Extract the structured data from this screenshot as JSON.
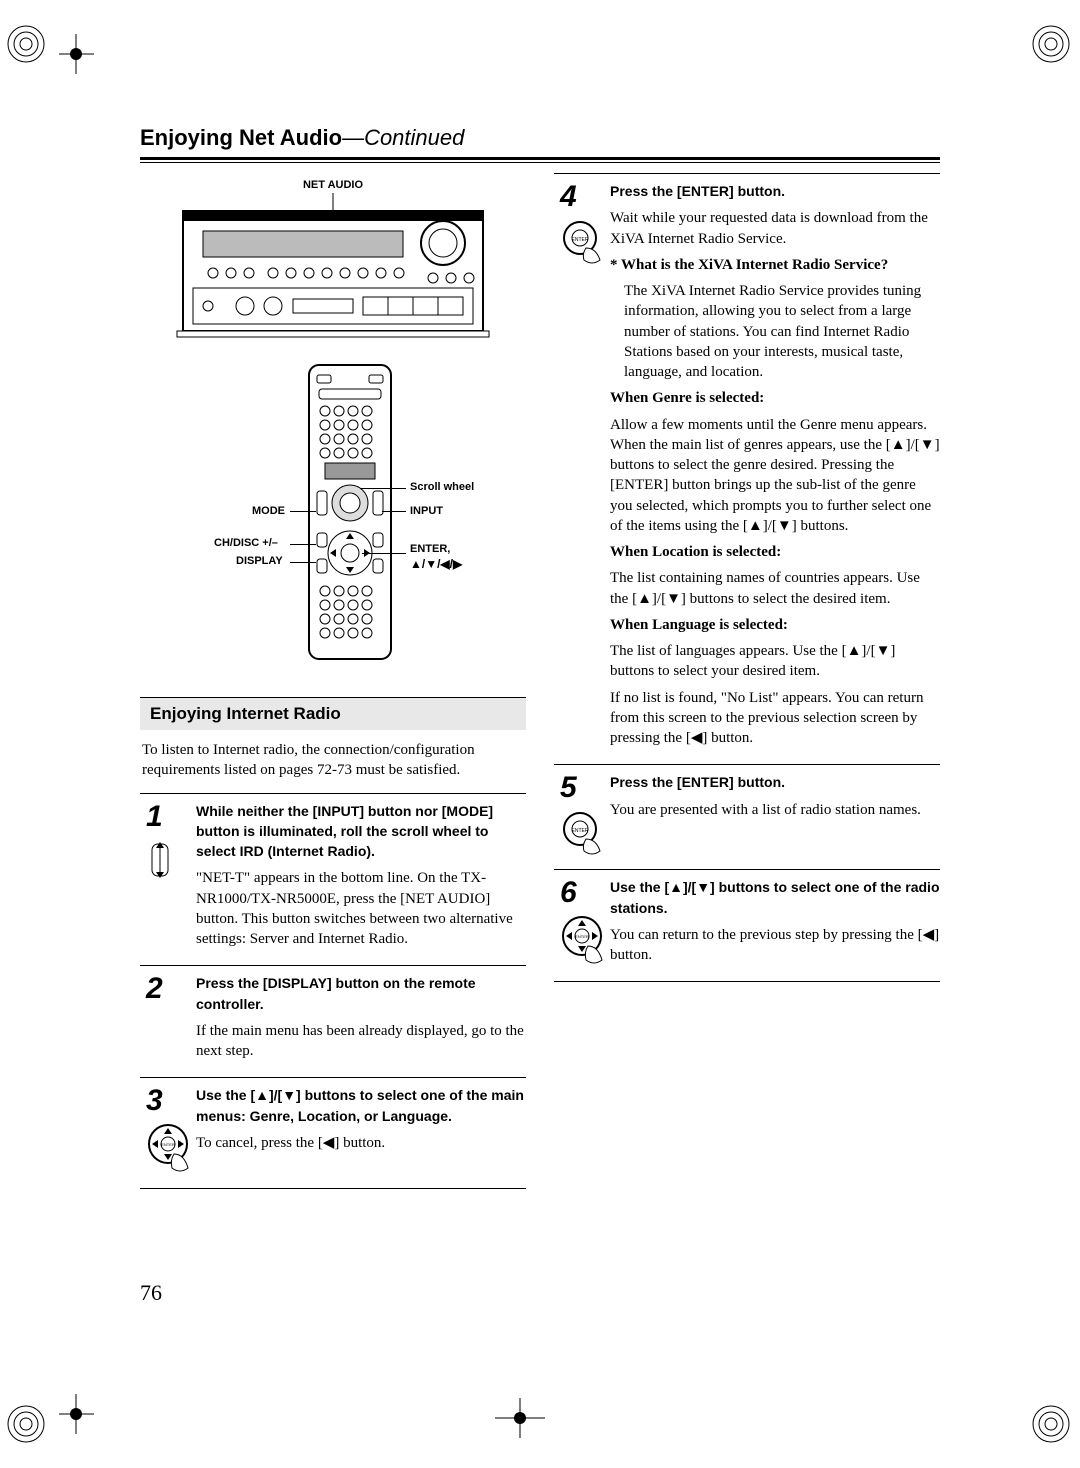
{
  "page_number": "76",
  "title_bold": "Enjoying Net Audio",
  "title_sep": "—",
  "title_italic": "Continued",
  "receiver_label": "NET AUDIO",
  "remote_labels": {
    "scroll_wheel": "Scroll wheel",
    "input": "INPUT",
    "mode": "MODE",
    "ch_disc": "CH/DISC +/–",
    "display": "DISPLAY",
    "enter": "ENTER,",
    "arrows": "▲/▼/◀/▶"
  },
  "section_heading": "Enjoying Internet Radio",
  "intro": "To listen to Internet radio, the connection/configuration requirements listed on pages 72-73 must be satisfied.",
  "steps_left": [
    {
      "num": "1",
      "icon": "scroll",
      "lead": "While neither the [INPUT] button nor [MODE] button is illuminated, roll the scroll wheel to select IRD (Internet Radio).",
      "body": "\"NET-T\" appears in the bottom line. On the TX-NR1000/TX-NR5000E, press the [NET AUDIO] button. This button switches between two alternative settings: Server and Internet Radio."
    },
    {
      "num": "2",
      "icon": "",
      "lead": "Press the [DISPLAY] button on the remote controller.",
      "body": "If the main menu has been already displayed, go to the next step."
    },
    {
      "num": "3",
      "icon": "navpad",
      "lead": "Use the [▲]/[▼] buttons to select one of the main menus: Genre, Location, or Language.",
      "body": "To cancel, press the [◀] button."
    }
  ],
  "steps_right": [
    {
      "num": "4",
      "icon": "enter",
      "lead": "Press the [ENTER] button.",
      "paras": [
        {
          "text": "Wait while your requested data is download from the XiVA Internet Radio Service."
        },
        {
          "bold": "* What is the XiVA Internet Radio Service?",
          "indent_bold_line2": "   "
        },
        {
          "text": "The XiVA Internet Radio Service provides tuning information, allowing you to select from a large number of stations. You can find Internet Radio Stations based on your interests, musical taste, language, and location.",
          "indent": true
        },
        {
          "bold": "When Genre is selected:"
        },
        {
          "text": "Allow a few moments until the Genre menu appears. When the main list of genres appears, use the [▲]/[▼] buttons to select the genre desired. Pressing the [ENTER] button brings up the sub-list of the genre you selected, which prompts you to further select one of the items using the [▲]/[▼] buttons."
        },
        {
          "bold": "When Location is selected:"
        },
        {
          "text": "The list containing names of countries appears. Use the [▲]/[▼] buttons to select the desired item."
        },
        {
          "bold": "When Language is selected:"
        },
        {
          "text": "The list of languages appears. Use the [▲]/[▼] buttons to select your desired item."
        },
        {
          "text": "If no list is found, \"No List\" appears. You can return from this screen to the previous selection screen by pressing the [◀] button."
        }
      ]
    },
    {
      "num": "5",
      "icon": "enter",
      "lead": "Press the [ENTER] button.",
      "paras": [
        {
          "text": "You are presented with a list of radio station names."
        }
      ]
    },
    {
      "num": "6",
      "icon": "navpad",
      "lead": "Use the [▲]/[▼] buttons to select one of the radio stations.",
      "paras": [
        {
          "text": "You can return to the previous step by pressing the [◀] button."
        }
      ]
    }
  ],
  "colors": {
    "text": "#000000",
    "bg": "#ffffff",
    "section_bg": "#e8e8e8"
  }
}
